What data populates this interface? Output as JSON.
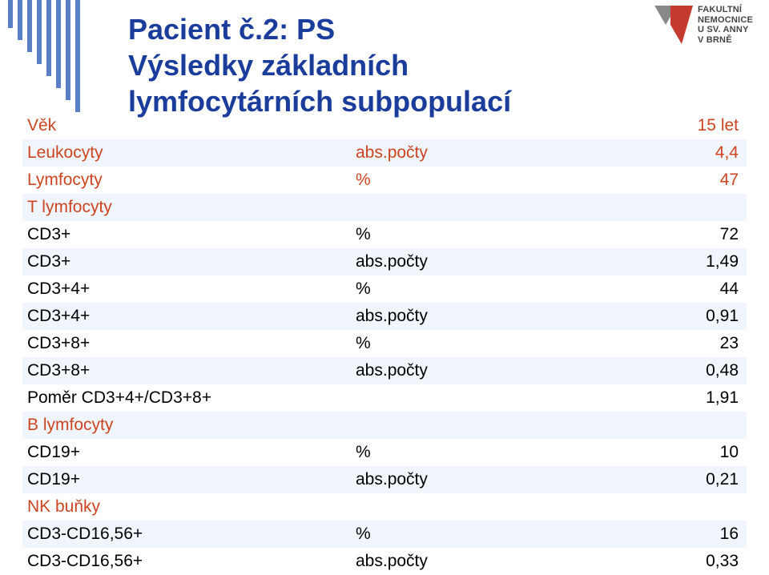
{
  "title": {
    "line1": "Pacient č.2: PS",
    "line2": "Výsledky základních",
    "line3": "lymfocytárních subpopulací",
    "color": "#1a3c9a",
    "fontsize": 36
  },
  "logo": {
    "line1": "FAKULTNÍ",
    "line2": "NEMOCNICE",
    "line3": "U SV. ANNY",
    "line4": "V BRNĚ",
    "mark_red": "#c43a2e",
    "mark_grey": "#888888"
  },
  "decoration": {
    "stripe_color": "#5b7fc7"
  },
  "table": {
    "stripe_bg": "#f1f5fd",
    "section_label_color": "#cc4422",
    "text_color": "#000000",
    "fontsize": 21,
    "rows": [
      {
        "label": "Věk",
        "unit": "",
        "value": "15 let",
        "section": true,
        "striped": false
      },
      {
        "label": "Leukocyty",
        "unit": "abs.počty",
        "value": "4,4",
        "section": true,
        "striped": true
      },
      {
        "label": "Lymfocyty",
        "unit": "%",
        "value": "47",
        "section": true,
        "striped": false
      },
      {
        "label": "T lymfocyty",
        "unit": "",
        "value": "",
        "section": true,
        "striped": true
      },
      {
        "label": "CD3+",
        "unit": "%",
        "value": "72",
        "section": false,
        "striped": false
      },
      {
        "label": "CD3+",
        "unit": "abs.počty",
        "value": "1,49",
        "section": false,
        "striped": true
      },
      {
        "label": "CD3+4+",
        "unit": "%",
        "value": "44",
        "section": false,
        "striped": false
      },
      {
        "label": "CD3+4+",
        "unit": "abs.počty",
        "value": "0,91",
        "section": false,
        "striped": true
      },
      {
        "label": "CD3+8+",
        "unit": "%",
        "value": "23",
        "section": false,
        "striped": false
      },
      {
        "label": "CD3+8+",
        "unit": "abs.počty",
        "value": "0,48",
        "section": false,
        "striped": true
      },
      {
        "label": "Poměr CD3+4+/CD3+8+",
        "unit": "",
        "value": "1,91",
        "section": false,
        "striped": false
      },
      {
        "label": "B lymfocyty",
        "unit": "",
        "value": "",
        "section": true,
        "striped": true
      },
      {
        "label": "CD19+",
        "unit": "%",
        "value": "10",
        "section": false,
        "striped": false
      },
      {
        "label": "CD19+",
        "unit": "abs.počty",
        "value": "0,21",
        "section": false,
        "striped": true
      },
      {
        "label": "NK buňky",
        "unit": "",
        "value": "",
        "section": true,
        "striped": false
      },
      {
        "label": "CD3-CD16,56+",
        "unit": "%",
        "value": "16",
        "section": false,
        "striped": true
      },
      {
        "label": "CD3-CD16,56+",
        "unit": "abs.počty",
        "value": "0,33",
        "section": false,
        "striped": false
      }
    ]
  }
}
